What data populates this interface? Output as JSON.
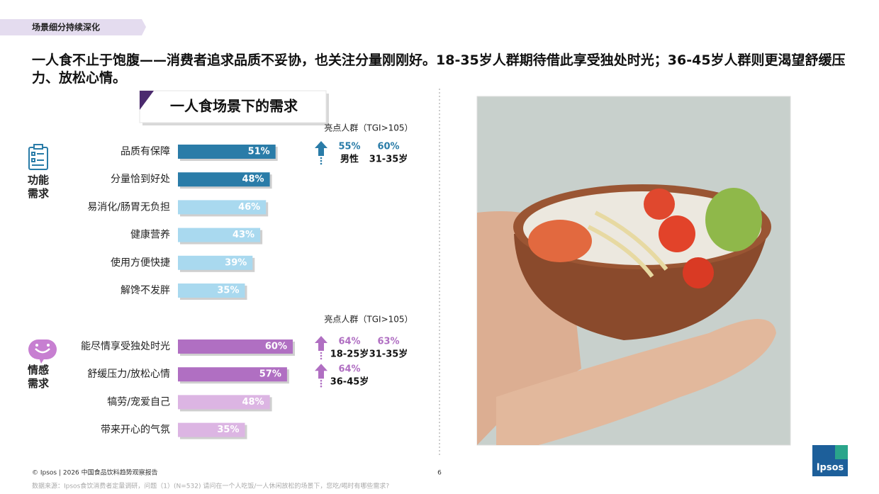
{
  "header": {
    "section_tag": "场景细分持续深化",
    "headline": "一人食不止于饱腹——消费者追求品质不妥协，也关注分量刚刚好。18-35岁人群期待借此享受独处时光；36-45岁人群则更渴望舒缓压力、放松心情。",
    "panel_title": "一人食场景下的需求"
  },
  "chart_data": [
    {
      "type": "bar",
      "group_label": "功能需求",
      "highlight_title": "亮点人群（TGI>105）",
      "categories": [
        "品质有保障",
        "分量恰到好处",
        "易消化/肠胃无负担",
        "健康营养",
        "使用方便快捷",
        "解馋不发胖"
      ],
      "values": [
        51,
        48,
        46,
        43,
        39,
        35
      ],
      "value_labels": [
        "51%",
        "48%",
        "46%",
        "43%",
        "39%",
        "35%"
      ],
      "colors": [
        "#2a7ca8",
        "#2a7ca8",
        "#a9d9ef",
        "#a9d9ef",
        "#a9d9ef",
        "#a9d9ef"
      ],
      "highlights": [
        [
          {
            "share": "55%",
            "group": "男性"
          },
          {
            "share": "60%",
            "group": "31-35岁"
          }
        ],
        null,
        null,
        null,
        null,
        null
      ]
    },
    {
      "type": "bar",
      "group_label": "情感需求",
      "highlight_title": "亮点人群（TGI>105）",
      "categories": [
        "能尽情享受独处时光",
        "舒缓压力/放松心情",
        "犒劳/宠爱自己",
        "带来开心的气氛"
      ],
      "values": [
        60,
        57,
        48,
        35
      ],
      "value_labels": [
        "60%",
        "57%",
        "48%",
        "35%"
      ],
      "colors": [
        "#b06fc2",
        "#b06fc2",
        "#dcb5e3",
        "#dcb5e3"
      ],
      "highlights": [
        [
          {
            "share": "64%",
            "group": "18-25岁"
          },
          {
            "share": "63%",
            "group": "31-35岁"
          }
        ],
        [
          {
            "share": "64%",
            "group": "36-45岁"
          }
        ],
        null,
        null
      ]
    }
  ],
  "footer": {
    "copyright": "© Ipsos | 2026 中国食品饮料趋势观察报告",
    "page": "6",
    "source": "数据来源：Ipsos食饮消费者定量调研，问题（1）(N=532) 请问在一个人吃饭/一人休闲放松的场景下，您吃/喝时有哪些需求?",
    "logo": "Ipsos"
  }
}
